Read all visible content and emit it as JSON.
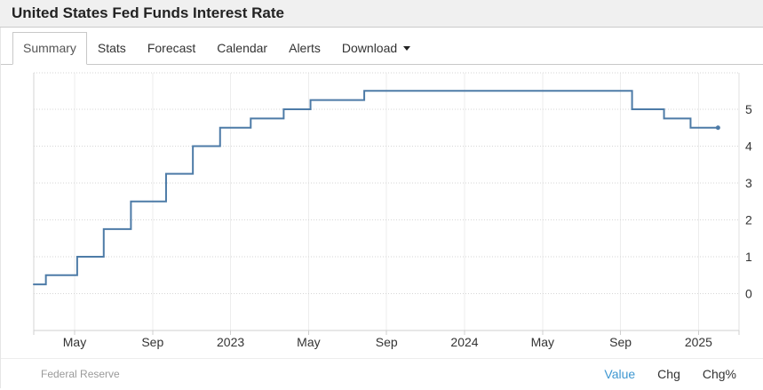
{
  "header": {
    "title": "United States Fed Funds Interest Rate"
  },
  "tabs": [
    {
      "id": "summary",
      "label": "Summary",
      "active": true,
      "has_dropdown": false
    },
    {
      "id": "stats",
      "label": "Stats",
      "active": false,
      "has_dropdown": false
    },
    {
      "id": "forecast",
      "label": "Forecast",
      "active": false,
      "has_dropdown": false
    },
    {
      "id": "calendar",
      "label": "Calendar",
      "active": false,
      "has_dropdown": false
    },
    {
      "id": "alerts",
      "label": "Alerts",
      "active": false,
      "has_dropdown": false
    },
    {
      "id": "download",
      "label": "Download",
      "active": false,
      "has_dropdown": true
    }
  ],
  "footer": {
    "source": "Federal Reserve",
    "links": [
      {
        "id": "value",
        "label": "Value",
        "active": true
      },
      {
        "id": "chg",
        "label": "Chg",
        "active": false
      },
      {
        "id": "chgpct",
        "label": "Chg%",
        "active": false
      }
    ]
  },
  "colors": {
    "line": "#4d7ba7",
    "link_blue": "#3e97d1"
  },
  "chart_data": {
    "type": "line",
    "subtype": "step-after",
    "title": "United States Fed Funds Interest Rate",
    "ylabel": "",
    "xlabel": "",
    "unit": "percent",
    "ylim": [
      0,
      5
    ],
    "y_ticks": [
      0,
      1,
      2,
      3,
      4,
      5
    ],
    "grid": "on",
    "legend_position": "none",
    "x_ticks": [
      {
        "date": "2022-05-01",
        "label": "May"
      },
      {
        "date": "2022-09-01",
        "label": "Sep"
      },
      {
        "date": "2023-01-01",
        "label": "2023"
      },
      {
        "date": "2023-05-01",
        "label": "May"
      },
      {
        "date": "2023-09-01",
        "label": "Sep"
      },
      {
        "date": "2024-01-01",
        "label": "2024"
      },
      {
        "date": "2024-05-01",
        "label": "May"
      },
      {
        "date": "2024-09-01",
        "label": "Sep"
      },
      {
        "date": "2025-01-01",
        "label": "2025"
      }
    ],
    "points": [
      {
        "date": "2022-02-26",
        "value": 0.25
      },
      {
        "date": "2022-03-17",
        "value": 0.5
      },
      {
        "date": "2022-05-05",
        "value": 1.0
      },
      {
        "date": "2022-06-16",
        "value": 1.75
      },
      {
        "date": "2022-07-28",
        "value": 2.5
      },
      {
        "date": "2022-09-22",
        "value": 3.25
      },
      {
        "date": "2022-11-03",
        "value": 4.0
      },
      {
        "date": "2022-12-15",
        "value": 4.5
      },
      {
        "date": "2023-02-02",
        "value": 4.75
      },
      {
        "date": "2023-03-23",
        "value": 5.0
      },
      {
        "date": "2023-05-04",
        "value": 5.25
      },
      {
        "date": "2023-07-27",
        "value": 5.5
      },
      {
        "date": "2024-09-19",
        "value": 5.0
      },
      {
        "date": "2024-11-08",
        "value": 4.75
      },
      {
        "date": "2024-12-19",
        "value": 4.5
      },
      {
        "date": "2025-02-01",
        "value": 4.5
      }
    ],
    "source": "Federal Reserve"
  }
}
